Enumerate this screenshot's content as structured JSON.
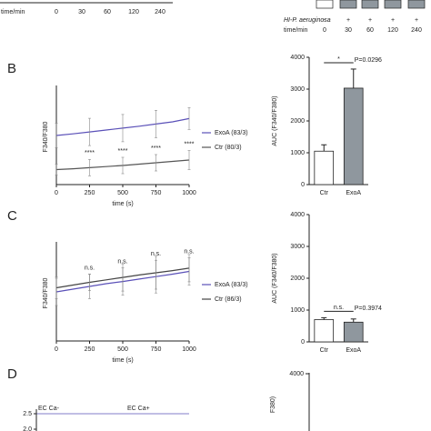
{
  "panel_labels": [
    "B",
    "C",
    "D"
  ],
  "top_strip": {
    "left": {
      "row_label": "time/min",
      "times": [
        "0",
        "30",
        "60",
        "120",
        "240"
      ]
    },
    "right": {
      "treatment_label": "HI-P. aeruginosa",
      "treatment": [
        "-",
        "+",
        "+",
        "+",
        "+"
      ],
      "row_label": "time/min",
      "times": [
        "0",
        "30",
        "60",
        "120",
        "240"
      ]
    }
  },
  "chart_data": [
    {
      "type": "line",
      "ylabel": "F340/F380",
      "xlabel": "time (s)",
      "x": [
        0,
        125,
        250,
        375,
        500,
        625,
        750,
        875,
        1000
      ],
      "xlim": [
        0,
        1000
      ],
      "xticks": [
        0,
        250,
        500,
        750,
        1000
      ],
      "ylim": [
        0,
        3.5
      ],
      "series": [
        {
          "name": "ExoA (83/3)",
          "color": "#5a50b8",
          "values": [
            1.8,
            1.86,
            1.93,
            2.0,
            2.07,
            2.14,
            2.22,
            2.3,
            2.42
          ],
          "errors": [
            0.45,
            null,
            0.5,
            null,
            0.5,
            null,
            0.5,
            null,
            0.4
          ]
        },
        {
          "name": "Ctr (80/3)",
          "color": "#555555",
          "values": [
            0.55,
            0.58,
            0.62,
            0.66,
            0.7,
            0.75,
            0.8,
            0.85,
            0.9
          ],
          "errors": [
            0.2,
            null,
            0.3,
            null,
            0.3,
            null,
            0.3,
            null,
            0.35
          ]
        }
      ],
      "annotations": [
        {
          "x": 250,
          "text": "****"
        },
        {
          "x": 500,
          "text": "****"
        },
        {
          "x": 750,
          "text": "****"
        },
        {
          "x": 1000,
          "text": "****"
        }
      ]
    },
    {
      "type": "bar",
      "ylabel": "AUC (F340/F380)",
      "categories": [
        "Ctr",
        "ExoA"
      ],
      "values": [
        1050,
        3030
      ],
      "errors": [
        200,
        600
      ],
      "colors": [
        "#ffffff",
        "#8f979e"
      ],
      "ylim": [
        0,
        4000
      ],
      "yticks": [
        0,
        1000,
        2000,
        3000,
        4000
      ],
      "significance": {
        "text": "*",
        "p_label": "P=0.0296"
      }
    },
    {
      "type": "line",
      "ylabel": "F340/F380",
      "xlabel": "time (s)",
      "x": [
        0,
        125,
        250,
        375,
        500,
        625,
        750,
        875,
        1000
      ],
      "xlim": [
        0,
        1000
      ],
      "xticks": [
        0,
        250,
        500,
        750,
        1000
      ],
      "ylim": [
        0,
        3.5
      ],
      "series": [
        {
          "name": "ExoA (83/3)",
          "color": "#5a50b8",
          "values": [
            1.8,
            1.9,
            2.0,
            2.1,
            2.18,
            2.27,
            2.36,
            2.45,
            2.55
          ],
          "errors": [
            0.5,
            null,
            0.45,
            null,
            0.5,
            null,
            0.6,
            null,
            0.5
          ]
        },
        {
          "name": "Ctr (86/3)",
          "color": "#444444",
          "values": [
            1.95,
            2.05,
            2.15,
            2.24,
            2.33,
            2.42,
            2.5,
            2.58,
            2.67
          ],
          "errors": [
            0.4,
            null,
            0.3,
            null,
            0.5,
            null,
            0.6,
            null,
            0.5
          ]
        }
      ],
      "annotations": [
        {
          "x": 250,
          "text": "n.s."
        },
        {
          "x": 500,
          "text": "n.s."
        },
        {
          "x": 750,
          "text": "n.s."
        },
        {
          "x": 1000,
          "text": "n.s."
        }
      ]
    },
    {
      "type": "bar",
      "ylabel": "AUC (F340/F380)",
      "categories": [
        "Ctr",
        "ExoA"
      ],
      "values": [
        700,
        620
      ],
      "errors": [
        60,
        100
      ],
      "colors": [
        "#ffffff",
        "#8f979e"
      ],
      "ylim": [
        0,
        4000
      ],
      "yticks": [
        0,
        1000,
        2000,
        3000,
        4000
      ],
      "significance": {
        "text": "n.s.",
        "p_label": "P=0.3974"
      }
    }
  ],
  "panel_d": {
    "yticks": [
      2.5,
      {
        "value": 2,
        "label": "2.0"
      }
    ],
    "annotations": [
      "EC Ca-",
      "EC Ca+"
    ],
    "right_ytick": 4000,
    "right_ylabel": "F380)"
  }
}
